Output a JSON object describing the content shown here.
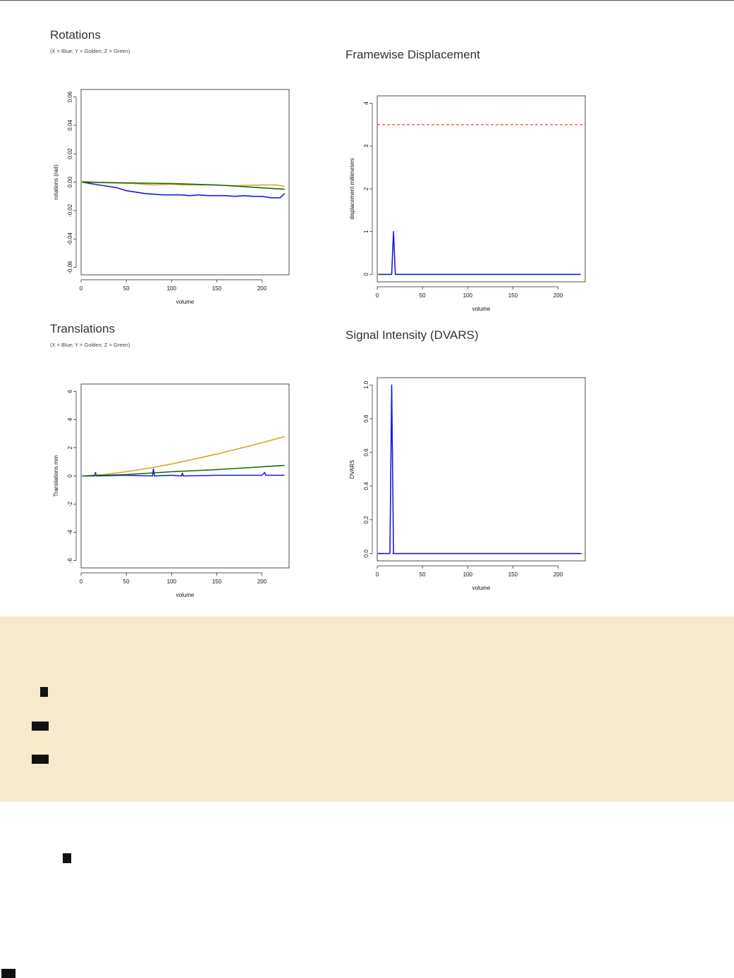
{
  "charts": {
    "rotations": {
      "title": "Rotations",
      "subtitle": "(X = Blue; Y = Golden; Z = Green)"
    },
    "framewise": {
      "title": "Framewise Displacement"
    },
    "translations": {
      "title": "Translations",
      "subtitle": "(X = Blue; Y = Golden; Z = Green)"
    },
    "dvars": {
      "title": "Signal Intensity (DVARS)"
    }
  },
  "colors": {
    "blue": "#1a1adc",
    "golden": "#d9a21b",
    "green": "#116611",
    "threshold": "#ee1111",
    "band": "#f5ebcc"
  },
  "chart_data": [
    {
      "id": "rotations",
      "type": "line",
      "title": "Rotations",
      "xlabel": "volume",
      "ylabel": "rotations (rad)",
      "xlim": [
        0,
        230
      ],
      "ylim": [
        -0.06,
        0.06
      ],
      "xticks": [
        "0",
        "50",
        "100",
        "150",
        "200"
      ],
      "yticks": [
        "-0.06",
        "-0.04",
        "-0.02",
        "0.00",
        "0.02",
        "0.04",
        "0.06"
      ],
      "series": [
        {
          "name": "X",
          "color": "#1a1adc",
          "x": [
            1,
            10,
            20,
            30,
            40,
            50,
            60,
            70,
            80,
            90,
            100,
            110,
            120,
            130,
            140,
            150,
            160,
            170,
            180,
            190,
            200,
            210,
            220,
            225
          ],
          "y": [
            0,
            -0.001,
            -0.002,
            -0.003,
            -0.004,
            -0.006,
            -0.007,
            -0.008,
            -0.0085,
            -0.009,
            -0.009,
            -0.009,
            -0.0095,
            -0.009,
            -0.0095,
            -0.0095,
            -0.0095,
            -0.01,
            -0.0095,
            -0.01,
            -0.01,
            -0.011,
            -0.011,
            -0.008
          ]
        },
        {
          "name": "Y",
          "color": "#d9a21b",
          "x": [
            1,
            15,
            30,
            60,
            80,
            100,
            112,
            140,
            170,
            200,
            215,
            225
          ],
          "y": [
            0.0005,
            0,
            -0.0005,
            -0.001,
            -0.002,
            -0.0015,
            -0.002,
            -0.002,
            -0.0025,
            -0.002,
            -0.002,
            -0.003
          ]
        },
        {
          "name": "Z",
          "color": "#116611",
          "x": [
            1,
            50,
            100,
            150,
            200,
            225
          ],
          "y": [
            0,
            -0.0005,
            -0.001,
            -0.002,
            -0.004,
            -0.005
          ]
        }
      ]
    },
    {
      "id": "framewise",
      "type": "line",
      "title": "Framewise Displacement",
      "xlabel": "volume",
      "ylabel": "displacement millimeters",
      "xlim": [
        0,
        230
      ],
      "ylim": [
        0,
        4
      ],
      "xticks": [
        "0",
        "50",
        "100",
        "150",
        "200"
      ],
      "yticks": [
        "0",
        "1",
        "2",
        "3",
        "4"
      ],
      "threshold": 3.5,
      "series": [
        {
          "name": "FD",
          "color": "#1a1adc",
          "x": [
            1,
            16,
            18,
            20,
            225
          ],
          "y": [
            0,
            0,
            1,
            0,
            0
          ]
        }
      ]
    },
    {
      "id": "translations",
      "type": "line",
      "title": "Translations",
      "xlabel": "volume",
      "ylabel": "Translations mm",
      "xlim": [
        0,
        230
      ],
      "ylim": [
        -6,
        6
      ],
      "xticks": [
        "0",
        "50",
        "100",
        "150",
        "200"
      ],
      "yticks": [
        "-6",
        "-4",
        "-2",
        "0",
        "2",
        "4",
        "6"
      ],
      "series": [
        {
          "name": "X",
          "color": "#1a1adc",
          "x": [
            1,
            15,
            16,
            17,
            50,
            79,
            80,
            81,
            100,
            111,
            112,
            113,
            150,
            200,
            203,
            204,
            205,
            225
          ],
          "y": [
            0,
            0,
            0.25,
            0,
            0.05,
            0,
            0.5,
            0,
            0.05,
            0,
            0.2,
            0,
            0.05,
            0.05,
            0.25,
            0.05,
            0.05,
            0.05
          ]
        },
        {
          "name": "Y",
          "color": "#d9a21b",
          "x": [
            1,
            25,
            50,
            75,
            100,
            125,
            150,
            175,
            200,
            225
          ],
          "y": [
            0,
            0.1,
            0.3,
            0.55,
            0.85,
            1.2,
            1.55,
            1.95,
            2.35,
            2.8
          ]
        },
        {
          "name": "Z",
          "color": "#116611",
          "x": [
            1,
            50,
            100,
            150,
            200,
            225
          ],
          "y": [
            0,
            0.1,
            0.3,
            0.45,
            0.65,
            0.75
          ]
        }
      ]
    },
    {
      "id": "dvars",
      "type": "line",
      "title": "Signal Intensity (DVARS)",
      "xlabel": "volume",
      "ylabel": "DVARS",
      "xlim": [
        0,
        230
      ],
      "ylim": [
        0,
        1
      ],
      "xticks": [
        "0",
        "50",
        "100",
        "150",
        "200"
      ],
      "yticks": [
        "0.0",
        "0.2",
        "0.4",
        "0.6",
        "0.8",
        "1.0"
      ],
      "threshold": 0,
      "series": [
        {
          "name": "DVARS",
          "color": "#1a1adc",
          "x": [
            1,
            14,
            16,
            18,
            225
          ],
          "y": [
            0,
            0,
            1,
            0,
            0
          ]
        }
      ]
    }
  ]
}
